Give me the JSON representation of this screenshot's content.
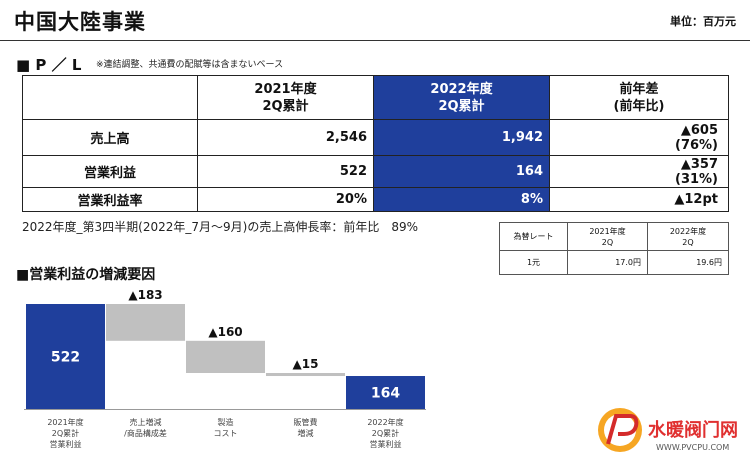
{
  "header": {
    "title": "中国大陸事業",
    "unit": "単位：百万元"
  },
  "pl": {
    "heading": "■ P ／ L",
    "note": "※連結調整、共通費の配賦等は含まないベース",
    "columns": {
      "col1": [
        "2021年度",
        "2Q累計"
      ],
      "col2": [
        "2022年度",
        "2Q累計"
      ],
      "col3": [
        "前年差",
        "(前年比)"
      ]
    },
    "rows": [
      {
        "label": "売上高",
        "v2021": "2,546",
        "v2022": "1,942",
        "diff": [
          "▲605",
          "(76%)"
        ]
      },
      {
        "label": "営業利益",
        "v2021": "522",
        "v2022": "164",
        "diff": [
          "▲357",
          "(31%)"
        ]
      },
      {
        "label": "営業利益率",
        "v2021": "20%",
        "v2022": "8%",
        "diff": [
          "▲12pt",
          ""
        ]
      }
    ]
  },
  "growth_note": "2022年度_第3四半期(2022年_7月～9月)の売上高伸長率：前年比　89%",
  "fx": {
    "header_label": "為替レート",
    "col1": [
      "2021年度",
      "2Q"
    ],
    "col2": [
      "2022年度",
      "2Q"
    ],
    "row_label": "1元",
    "v2021": "17.0円",
    "v2022": "19.6円"
  },
  "factors_heading": "■営業利益の増減要因",
  "chart_data": {
    "type": "waterfall",
    "title": "",
    "categories": [
      [
        "2021年度",
        "2Q累計",
        "営業利益"
      ],
      [
        "売上増減",
        "/商品構成差"
      ],
      [
        "製造",
        "コスト"
      ],
      [
        "販管費",
        "増減"
      ],
      [
        "2022年度",
        "2Q累計",
        "営業利益"
      ]
    ],
    "steps": [
      {
        "kind": "total",
        "value": 522,
        "label": "522"
      },
      {
        "kind": "delta",
        "value": -183,
        "label": "▲183"
      },
      {
        "kind": "delta",
        "value": -160,
        "label": "▲160"
      },
      {
        "kind": "delta",
        "value": -15,
        "label": "▲15"
      },
      {
        "kind": "total",
        "value": 164,
        "label": "164"
      }
    ],
    "colors": {
      "total": "#1f3f9c",
      "delta": "#c0c0c0",
      "axis": "#999999"
    }
  },
  "logo": {
    "text": "水暖阀门网",
    "url_text": "WWW.PVCPU.COM",
    "glyph": "PV"
  }
}
